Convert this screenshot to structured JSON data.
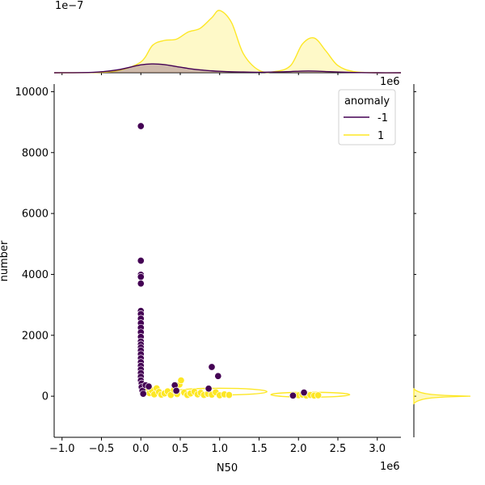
{
  "chart_data": {
    "type": "scatter",
    "title": "",
    "xlabel": "N50",
    "ylabel": "number",
    "x_offset_label": "1e6",
    "top_offset_label": "1e−7",
    "right_offset_label": "1e6",
    "xlim": [
      -1100000,
      3300000
    ],
    "ylim": [
      -1350,
      10250
    ],
    "x_ticks": [
      -1000000,
      -500000,
      0,
      500000,
      1000000,
      1500000,
      2000000,
      2500000,
      3000000
    ],
    "x_tick_labels": [
      "−1.0",
      "−0.5",
      "0.0",
      "0.5",
      "1.0",
      "1.5",
      "2.0",
      "2.5",
      "3.0"
    ],
    "y_ticks": [
      0,
      2000,
      4000,
      6000,
      8000,
      10000
    ],
    "y_tick_labels": [
      "0",
      "2000",
      "4000",
      "6000",
      "8000",
      "10000"
    ],
    "grid": false,
    "legend": {
      "title": "anomaly",
      "placement": "top-right",
      "entries": [
        {
          "label": "-1",
          "color": "#440154"
        },
        {
          "label": "1",
          "color": "#fde725"
        }
      ]
    },
    "series": [
      {
        "name": "-1",
        "color": "#440154",
        "points": [
          [
            0,
            8870
          ],
          [
            0,
            4450
          ],
          [
            0,
            3990
          ],
          [
            0,
            3920
          ],
          [
            0,
            3700
          ],
          [
            0,
            2800
          ],
          [
            0,
            2700
          ],
          [
            0,
            2550
          ],
          [
            0,
            2400
          ],
          [
            0,
            2250
          ],
          [
            0,
            2100
          ],
          [
            0,
            1950
          ],
          [
            0,
            1800
          ],
          [
            0,
            1700
          ],
          [
            0,
            1600
          ],
          [
            0,
            1500
          ],
          [
            0,
            1380
          ],
          [
            0,
            1250
          ],
          [
            0,
            1120
          ],
          [
            0,
            1000
          ],
          [
            0,
            880
          ],
          [
            0,
            760
          ],
          [
            0,
            640
          ],
          [
            0,
            520
          ],
          [
            10000,
            420
          ],
          [
            10000,
            300
          ],
          [
            20000,
            180
          ],
          [
            30000,
            80
          ],
          [
            60000,
            360
          ],
          [
            100000,
            320
          ],
          [
            430000,
            360
          ],
          [
            450000,
            180
          ],
          [
            860000,
            250
          ],
          [
            900000,
            960
          ],
          [
            980000,
            660
          ],
          [
            1930000,
            20
          ],
          [
            2070000,
            120
          ]
        ]
      },
      {
        "name": "1",
        "color": "#fde725",
        "points": [
          [
            0,
            600
          ],
          [
            0,
            500
          ],
          [
            10000,
            420
          ],
          [
            20000,
            300
          ],
          [
            40000,
            220
          ],
          [
            60000,
            150
          ],
          [
            80000,
            280
          ],
          [
            110000,
            100
          ],
          [
            140000,
            190
          ],
          [
            170000,
            60
          ],
          [
            200000,
            260
          ],
          [
            230000,
            140
          ],
          [
            260000,
            50
          ],
          [
            300000,
            90
          ],
          [
            340000,
            160
          ],
          [
            380000,
            40
          ],
          [
            420000,
            210
          ],
          [
            460000,
            70
          ],
          [
            490000,
            380
          ],
          [
            510000,
            520
          ],
          [
            550000,
            120
          ],
          [
            590000,
            40
          ],
          [
            630000,
            90
          ],
          [
            680000,
            150
          ],
          [
            720000,
            60
          ],
          [
            760000,
            110
          ],
          [
            800000,
            40
          ],
          [
            850000,
            80
          ],
          [
            900000,
            50
          ],
          [
            950000,
            130
          ],
          [
            1000000,
            30
          ],
          [
            1060000,
            60
          ],
          [
            1120000,
            40
          ],
          [
            2000000,
            30
          ],
          [
            2050000,
            50
          ],
          [
            2100000,
            20
          ],
          [
            2150000,
            40
          ],
          [
            2200000,
            20
          ],
          [
            2250000,
            30
          ]
        ]
      }
    ],
    "kde_contours": [
      {
        "series": "1",
        "color": "#fde725",
        "center": [
          1000000,
          150
        ],
        "rx": 600000,
        "ry": 110
      },
      {
        "series": "1",
        "color": "#fde725",
        "center": [
          2150000,
          50
        ],
        "rx": 500000,
        "ry": 80
      }
    ],
    "top_marginal": {
      "type": "kde",
      "x": [
        -1100000,
        -600000,
        -300000,
        0,
        150000,
        300000,
        450000,
        600000,
        750000,
        900000,
        1000000,
        1150000,
        1300000,
        1500000,
        1700000,
        1900000,
        2050000,
        2200000,
        2350000,
        2500000,
        2700000,
        3000000,
        3300000
      ],
      "series": [
        {
          "name": "-1",
          "color": "#440154",
          "values": [
            0,
            0.02,
            0.12,
            0.33,
            0.37,
            0.34,
            0.26,
            0.18,
            0.12,
            0.08,
            0.06,
            0.04,
            0.03,
            0.02,
            0.03,
            0.05,
            0.07,
            0.07,
            0.05,
            0.03,
            0.01,
            0,
            0
          ]
        },
        {
          "name": "1",
          "color": "#fde725",
          "values": [
            0,
            0.01,
            0.08,
            0.45,
            1.15,
            1.35,
            1.4,
            1.7,
            1.85,
            2.3,
            2.6,
            2.1,
            0.8,
            0.1,
            0.05,
            0.3,
            1.2,
            1.45,
            0.9,
            0.3,
            0.05,
            0,
            0
          ]
        }
      ]
    },
    "right_marginal": {
      "type": "kde",
      "note_peak_at_y": 0
    }
  }
}
